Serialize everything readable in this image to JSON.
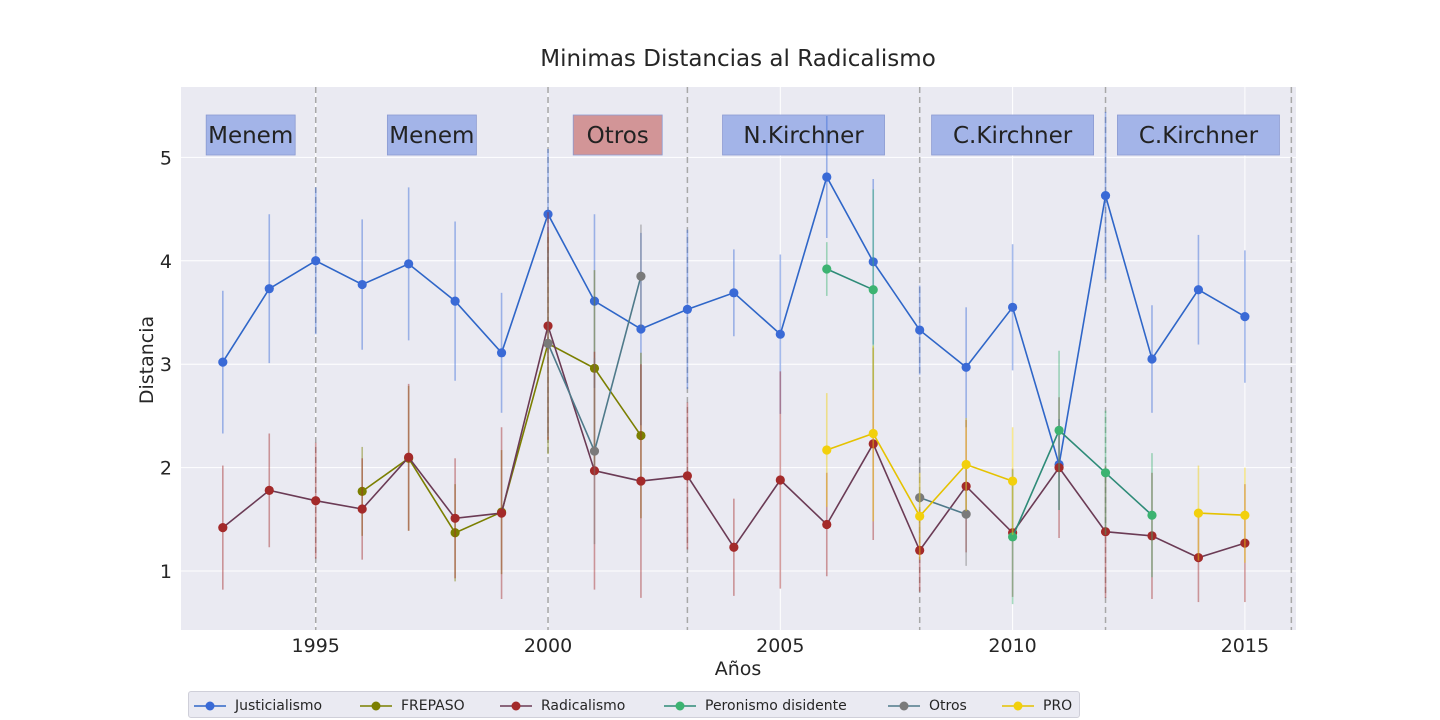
{
  "chart_data": {
    "type": "line",
    "title": "Minimas Distancias al Radicalismo",
    "xlabel": "Años",
    "ylabel": "Distancia",
    "xlim": [
      1992.1,
      2016.1
    ],
    "ylim": [
      0.43,
      5.68
    ],
    "xticks": [
      1995,
      2000,
      2005,
      2010,
      2015
    ],
    "yticks": [
      1,
      2,
      3,
      4,
      5
    ],
    "grid": true,
    "legend_position": "bottom-left, below plot",
    "period_boundaries": [
      1995,
      2000,
      2003,
      2008,
      2012,
      2016
    ],
    "periods": [
      {
        "label": "Menem",
        "x": 1993.6,
        "color": "#a3b4e8"
      },
      {
        "label": "Menem",
        "x": 1997.5,
        "color": "#a3b4e8"
      },
      {
        "label": "Otros",
        "x": 2001.5,
        "color": "#d29597"
      },
      {
        "label": "N.Kirchner",
        "x": 2005.5,
        "color": "#a3b4e8"
      },
      {
        "label": "C.Kirchner",
        "x": 2010,
        "color": "#a3b4e8"
      },
      {
        "label": "C.Kirchner",
        "x": 2014,
        "color": "#a3b4e8"
      }
    ],
    "series": [
      {
        "name": "Justicialismo",
        "color": "#3a6ad6",
        "line_color": "#2f66c8",
        "x": [
          1993,
          1994,
          1995,
          1996,
          1997,
          1998,
          1999,
          2000,
          2001,
          2002,
          2003,
          2004,
          2005,
          2006,
          2007,
          2008,
          2009,
          2010,
          2011,
          2012,
          2013,
          2014,
          2015
        ],
        "y": [
          3.02,
          3.73,
          4.0,
          3.77,
          3.97,
          3.61,
          3.11,
          4.45,
          3.61,
          3.34,
          3.53,
          3.69,
          3.29,
          4.81,
          3.99,
          3.33,
          2.97,
          3.55,
          2.03,
          4.63,
          3.05,
          3.72,
          3.46
        ],
        "err": [
          0.69,
          0.72,
          0.71,
          0.63,
          0.74,
          0.77,
          0.58,
          0.63,
          0.84,
          0.93,
          0.77,
          0.42,
          0.77,
          0.59,
          0.8,
          0.43,
          0.58,
          0.61,
          0.44,
          0.81,
          0.52,
          0.53,
          0.64
        ]
      },
      {
        "name": "FREPASO",
        "color": "#7b7f00",
        "line_color": "#7b7f00",
        "x": [
          1996,
          1997,
          1998,
          1999,
          2000,
          2001,
          2002
        ],
        "y": [
          1.77,
          2.09,
          1.37,
          1.57,
          3.2,
          2.96,
          2.31
        ],
        "err": [
          0.43,
          0.7,
          0.47,
          0.6,
          1.07,
          0.95,
          0.8
        ]
      },
      {
        "name": "Radicalismo",
        "color": "#a32a2a",
        "line_color": "#6b3b55",
        "x": [
          1993,
          1994,
          1995,
          1996,
          1997,
          1998,
          1999,
          2000,
          2001,
          2002,
          2003,
          2004,
          2005,
          2006,
          2007,
          2008,
          2009,
          2010,
          2011,
          2012,
          2013,
          2014,
          2015
        ],
        "y": [
          1.42,
          1.78,
          1.68,
          1.6,
          2.1,
          1.51,
          1.56,
          3.37,
          1.97,
          1.87,
          1.92,
          1.23,
          1.88,
          1.45,
          2.23,
          1.2,
          1.82,
          1.37,
          2.0,
          1.38,
          1.34,
          1.13,
          1.27
        ],
        "err": [
          0.6,
          0.55,
          0.56,
          0.49,
          0.71,
          0.58,
          0.83,
          1.1,
          1.15,
          1.13,
          0.71,
          0.47,
          1.05,
          0.5,
          0.93,
          0.4,
          0.64,
          0.62,
          0.68,
          0.64,
          0.61,
          0.43,
          0.57
        ]
      },
      {
        "name": "Peronismo disidente",
        "color": "#3cb371",
        "line_color": "#2e8b78",
        "x": [
          2006,
          2007,
          2008,
          2009,
          2010,
          2011,
          2012,
          2013
        ],
        "y": [
          3.92,
          3.72,
          null,
          null,
          1.33,
          2.36,
          1.95,
          1.54
        ],
        "err": [
          0.26,
          0.97,
          null,
          null,
          0.65,
          0.77,
          0.6,
          0.6
        ]
      },
      {
        "name": "Otros",
        "color": "#7a7a7a",
        "line_color": "#4f7a8a",
        "x": [
          2000,
          2001,
          2002,
          2003,
          2004,
          2005,
          2006,
          2007,
          2008,
          2009
        ],
        "y": [
          3.2,
          2.16,
          3.85,
          null,
          null,
          null,
          null,
          null,
          1.71,
          1.55
        ],
        "err": [
          0.9,
          0.9,
          0.5,
          null,
          null,
          null,
          null,
          null,
          0.38,
          0.5
        ]
      },
      {
        "name": "PRO",
        "color": "#f2d00c",
        "line_color": "#e5c200",
        "x": [
          2006,
          2007,
          2008,
          2009,
          2010,
          2011,
          2012,
          2013,
          2014,
          2015
        ],
        "y": [
          2.17,
          2.33,
          1.53,
          2.03,
          1.87,
          null,
          null,
          null,
          1.56,
          1.54
        ],
        "err": [
          0.55,
          0.85,
          0.42,
          0.45,
          0.52,
          null,
          null,
          null,
          0.46,
          0.46
        ]
      }
    ]
  }
}
